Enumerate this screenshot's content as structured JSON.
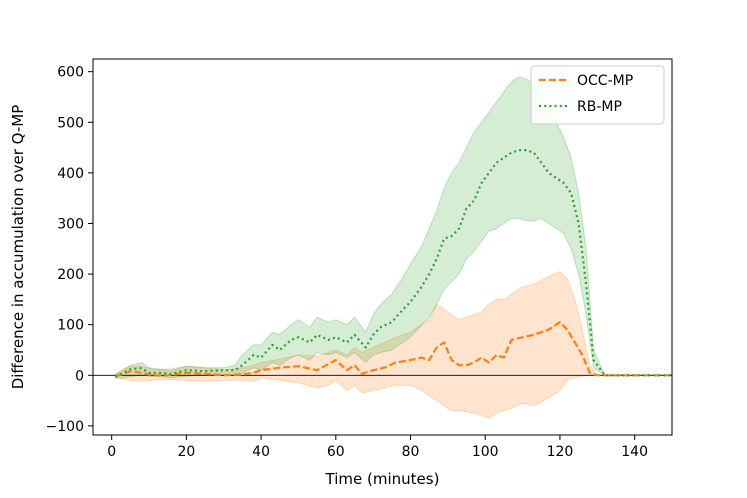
{
  "chart_data": {
    "type": "line",
    "xlabel": "Time (minutes)",
    "ylabel": "Difference in accumulation over Q-MP",
    "xlim": [
      -5,
      150
    ],
    "ylim": [
      -118,
      625
    ],
    "xticks": [
      0,
      20,
      40,
      60,
      80,
      100,
      120,
      140
    ],
    "yticks": [
      -100,
      0,
      100,
      200,
      300,
      400,
      500,
      600
    ],
    "ytick_labels": [
      "−100",
      "0",
      "100",
      "200",
      "300",
      "400",
      "500",
      "600"
    ],
    "reference_line_y": 0,
    "legend_position": "top-right",
    "series": [
      {
        "name": "OCC-MP",
        "color": "#ff7f0e",
        "style": "dashed",
        "x": [
          1,
          3,
          5,
          8,
          11,
          15,
          20,
          25,
          30,
          35,
          38,
          40,
          45,
          50,
          55,
          58,
          60,
          63,
          65,
          67,
          70,
          73,
          76,
          80,
          83,
          85,
          87,
          89,
          91,
          93,
          95,
          97,
          99,
          101,
          103,
          105,
          107,
          110,
          113,
          117,
          120,
          122,
          124,
          126,
          128,
          130,
          135,
          140,
          145,
          150
        ],
        "y": [
          -2,
          3,
          8,
          5,
          0,
          0,
          5,
          3,
          0,
          2,
          5,
          10,
          15,
          18,
          10,
          22,
          30,
          10,
          20,
          3,
          10,
          15,
          25,
          30,
          35,
          30,
          55,
          65,
          30,
          20,
          20,
          25,
          35,
          25,
          40,
          35,
          70,
          75,
          80,
          90,
          105,
          90,
          65,
          40,
          5,
          0,
          0,
          0,
          0,
          0
        ],
        "lower": [
          -5,
          -8,
          -10,
          -12,
          -10,
          -8,
          -10,
          -12,
          -10,
          -10,
          -12,
          -5,
          -10,
          -15,
          -25,
          -20,
          -10,
          -30,
          -20,
          -35,
          -30,
          -25,
          -20,
          -20,
          -30,
          -40,
          -50,
          -60,
          -70,
          -70,
          -72,
          -75,
          -80,
          -85,
          -75,
          -70,
          -65,
          -55,
          -60,
          -45,
          -30,
          -10,
          -5,
          -2,
          0,
          0,
          0,
          0,
          0,
          0
        ],
        "upper": [
          2,
          12,
          18,
          18,
          12,
          12,
          18,
          15,
          10,
          15,
          20,
          25,
          32,
          40,
          38,
          45,
          50,
          40,
          55,
          45,
          55,
          65,
          75,
          85,
          100,
          110,
          140,
          130,
          120,
          110,
          115,
          120,
          125,
          140,
          150,
          150,
          160,
          175,
          180,
          195,
          205,
          190,
          150,
          90,
          20,
          0,
          0,
          0,
          0,
          0
        ]
      },
      {
        "name": "RB-MP",
        "color": "#2ca02c",
        "style": "dotted",
        "x": [
          1,
          3,
          5,
          8,
          10,
          13,
          16,
          20,
          25,
          30,
          33,
          35,
          38,
          40,
          43,
          45,
          48,
          50,
          53,
          55,
          58,
          60,
          63,
          65,
          68,
          70,
          72,
          75,
          78,
          80,
          83,
          85,
          87,
          89,
          91,
          93,
          95,
          97,
          99,
          101,
          103,
          105,
          107,
          109,
          111,
          113,
          115,
          117,
          119,
          121,
          123,
          125,
          127,
          129,
          132,
          135,
          140,
          145,
          150
        ],
        "y": [
          -3,
          5,
          12,
          14,
          5,
          5,
          3,
          10,
          8,
          10,
          10,
          20,
          40,
          35,
          60,
          50,
          70,
          75,
          65,
          80,
          70,
          75,
          65,
          80,
          55,
          80,
          95,
          105,
          130,
          145,
          175,
          200,
          230,
          270,
          275,
          290,
          330,
          345,
          380,
          400,
          420,
          430,
          440,
          445,
          445,
          440,
          420,
          400,
          390,
          380,
          360,
          300,
          180,
          30,
          0,
          0,
          0,
          0,
          0
        ],
        "lower": [
          -5,
          -5,
          -3,
          0,
          -2,
          -3,
          -5,
          -2,
          0,
          0,
          0,
          5,
          15,
          10,
          25,
          20,
          35,
          40,
          30,
          45,
          40,
          45,
          35,
          45,
          25,
          40,
          45,
          50,
          65,
          75,
          100,
          115,
          140,
          170,
          185,
          200,
          230,
          245,
          265,
          285,
          290,
          300,
          310,
          310,
          305,
          305,
          310,
          300,
          290,
          280,
          250,
          200,
          120,
          15,
          0,
          0,
          0,
          0,
          0
        ],
        "upper": [
          2,
          10,
          20,
          25,
          15,
          12,
          10,
          18,
          15,
          15,
          20,
          40,
          60,
          60,
          85,
          80,
          100,
          110,
          95,
          115,
          105,
          110,
          100,
          115,
          85,
          120,
          140,
          160,
          195,
          220,
          255,
          290,
          325,
          370,
          400,
          420,
          450,
          480,
          500,
          520,
          540,
          560,
          580,
          590,
          585,
          575,
          560,
          530,
          500,
          470,
          430,
          360,
          250,
          50,
          0,
          0,
          0,
          0,
          0
        ]
      }
    ]
  }
}
